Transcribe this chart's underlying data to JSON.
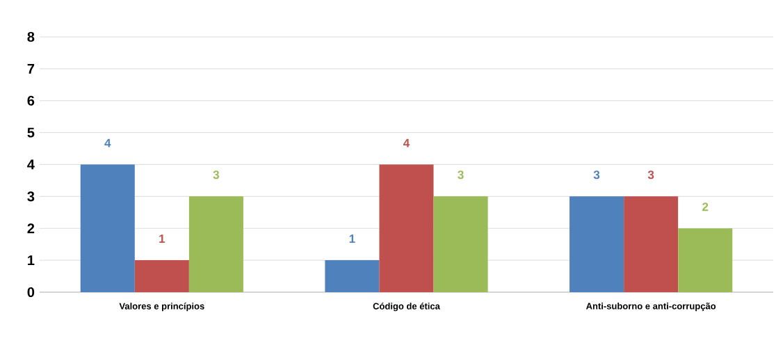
{
  "chart_data": {
    "type": "bar",
    "categories": [
      "Valores e princípios",
      "Código de ética",
      "Anti-suborno e anti-corrupção"
    ],
    "series": [
      {
        "color": "#4f81bd",
        "values": [
          4,
          1,
          3
        ]
      },
      {
        "color": "#c0504d",
        "values": [
          1,
          4,
          3
        ]
      },
      {
        "color": "#9bbb59",
        "values": [
          3,
          3,
          2
        ]
      }
    ],
    "ylim": [
      0,
      8
    ],
    "yticks": [
      0,
      1,
      2,
      3,
      4,
      5,
      6,
      7,
      8
    ],
    "grid": "y",
    "data_labels": true
  }
}
